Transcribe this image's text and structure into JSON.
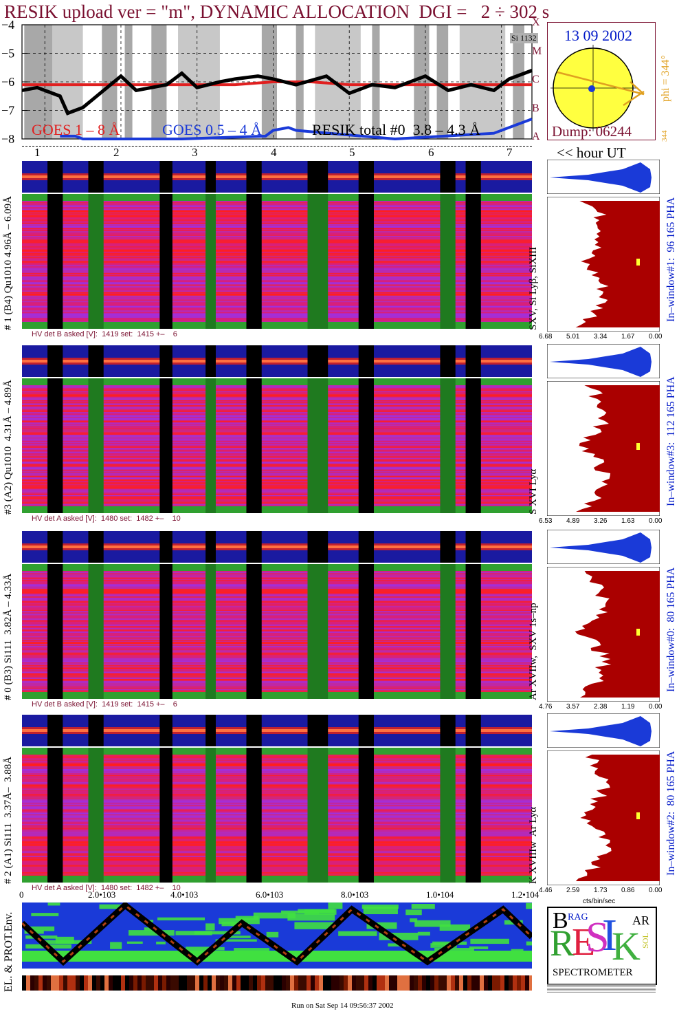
{
  "title": "RESIK upload ver = \"m\", DYNAMIC ALLOCATION  DGI =   2 ÷ 302 s",
  "colors": {
    "title": "#7a1030",
    "goes_long": "#e02020",
    "goes_short": "#1a3ad8",
    "resik_total": "#000000",
    "spectrum_fill": "#aa0000",
    "pha_fill": "#1a3ad8",
    "sun_disk": "#ffff40",
    "env_bg": "#1a3ad8",
    "env_green": "#40e040",
    "label_blue": "#0018c8",
    "label_orange": "#e0a020"
  },
  "goes_panel": {
    "yticks": [
      "−4",
      "−5",
      "−6",
      "−7",
      "−8"
    ],
    "class_letters": [
      "X",
      "M",
      "C",
      "B",
      "A"
    ],
    "legend_goes_long": "GOES 1 – 8 Å",
    "legend_goes_short": "GOES 0.5 – 4 Å",
    "legend_resik": "RESIK total #0  3.8 – 4.3 Å",
    "corner_label": "Si 1132"
  },
  "sun_panel": {
    "date": "13 09 2002",
    "phi_label": "phi = 344°",
    "phi_top": "344",
    "phi_bottom": "344",
    "dump_label": "Dump: 06244"
  },
  "hour_axis": {
    "labels": [
      "1",
      "2",
      "3",
      "4",
      "5",
      "6",
      "7"
    ],
    "unit": "<< hour UT"
  },
  "detectors": [
    {
      "left_label": "# 1 (B4) Qu1010 4.96Å – 6.09Å",
      "right_label": "SXV, Si Lyβ, SiXIII",
      "window_label": "In–window#1:  96 165 PHA",
      "hv": "HV det B asked [V]:  1419 set:  1415 +–    6",
      "xticks": [
        "6.68",
        "5.01",
        "3.34",
        "1.67",
        "0.00"
      ]
    },
    {
      "left_label": "#3 (A2) Qu1010  4.31Å – 4.89Å",
      "right_label": "S XVI Lyα",
      "window_label": "In–window#3:  112 165 PHA",
      "hv": "HV det A asked [V]:  1480 set:  1482 +–    10",
      "xticks": [
        "6.53",
        "4.89",
        "3.26",
        "1.63",
        "0.00"
      ]
    },
    {
      "left_label": "# 0 (B3) Si111  3.82Å – 4.33Å",
      "right_label": "Ar XVIIw,  SXV 1s–np",
      "window_label": "In–window#0:  80 165 PHA",
      "hv": "HV det B asked [V]:  1419 set:  1415 +–    6",
      "xticks": [
        "4.76",
        "3.57",
        "2.38",
        "1.19",
        "0.00"
      ]
    },
    {
      "left_label": "# 2 (A1) Si111  3.37Å–  3.88Å",
      "right_label": "K XVIIIw  Ar Lyα",
      "window_label": "In–window#2:  80 165 PHA",
      "hv": "HV det A asked [V]:  1480 set:  1482 +–    10",
      "xticks": [
        "4.46",
        "2.59",
        "1.73",
        "0.86",
        "0.00"
      ]
    }
  ],
  "channel_axis": {
    "ticks": [
      "0",
      "2.0•103",
      "4.0•103",
      "6.0•103",
      "8.0•103",
      "1.0•104",
      "1.2•104"
    ]
  },
  "spectrum_unit": "cts/bin/sec",
  "env_panel": {
    "label": "EL. & PROT.Env."
  },
  "logo": {
    "letters_big": "RESIK",
    "small_b": "B",
    "small_rag": "RAG",
    "small_sol": "SOL",
    "small_ar": "AR",
    "subtitle": "SPECTROMETER"
  },
  "footer": "Run on Sat Sep 14 09:56:37 2002",
  "chart_data": {
    "type": "line",
    "title": "RESIK upload ver = \"m\", DYNAMIC ALLOCATION  DGI =   2 ÷ 302 s",
    "xlabel": "<< hour UT",
    "ylabel": "",
    "xlim": [
      0.7,
      7.4
    ],
    "ylim": [
      -8,
      -4
    ],
    "series": [
      {
        "name": "GOES 1 – 8 Å",
        "x": [
          0.7,
          1.0,
          1.5,
          2.0,
          2.5,
          3.0,
          3.5,
          4.0,
          4.5,
          5.0,
          5.5,
          6.0,
          6.5,
          7.0,
          7.4
        ],
        "values": [
          -6.1,
          -6.1,
          -6.1,
          -6.1,
          -6.1,
          -6.1,
          -6.1,
          -6.0,
          -6.0,
          -6.1,
          -6.1,
          -6.1,
          -6.1,
          -6.1,
          -6.1
        ]
      },
      {
        "name": "GOES 0.5 – 4 Å",
        "x": [
          1.2,
          1.4,
          1.5,
          2.8,
          3.9,
          4.0,
          4.2,
          4.3,
          5.6,
          6.9,
          7.1,
          7.3,
          7.4
        ],
        "values": [
          -7.9,
          -7.9,
          -8.0,
          -8.0,
          -7.9,
          -7.7,
          -7.6,
          -7.7,
          -8.0,
          -7.8,
          -7.6,
          -7.4,
          -7.3
        ]
      },
      {
        "name": "RESIK total #0  3.8 – 4.3 Å",
        "x": [
          0.7,
          0.9,
          1.2,
          1.3,
          1.5,
          2.0,
          2.2,
          2.6,
          2.8,
          3.0,
          3.3,
          3.5,
          3.8,
          4.0,
          4.3,
          4.7,
          5.0,
          5.3,
          5.6,
          6.0,
          6.3,
          6.6,
          6.9,
          7.1,
          7.4
        ],
        "values": [
          -6.3,
          -6.2,
          -6.5,
          -7.1,
          -6.9,
          -5.8,
          -6.3,
          -6.1,
          -5.7,
          -6.2,
          -6.0,
          -5.9,
          -5.8,
          -5.9,
          -6.1,
          -5.8,
          -6.4,
          -6.1,
          -6.2,
          -5.8,
          -6.3,
          -6.1,
          -6.3,
          -5.9,
          -5.6
        ]
      }
    ]
  }
}
